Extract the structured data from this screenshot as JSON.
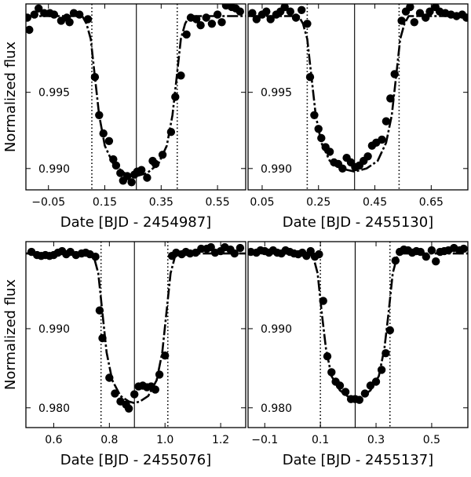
{
  "chart_data": [
    {
      "type": "scatter",
      "ylabel": "Normalized flux",
      "xlabel": "Date [BJD - 2454987]",
      "xlim": [
        -0.13,
        0.65
      ],
      "ylim": [
        0.9886,
        1.0008
      ],
      "xticks": [
        -0.05,
        0.15,
        0.35,
        0.55
      ],
      "xtick_labels": [
        "−0.05",
        "0.15",
        "0.35",
        "0.55"
      ],
      "yticks": [
        0.995,
        0.99
      ],
      "ytick_labels": [
        "0.995",
        "0.990"
      ],
      "vlines": [
        {
          "x": 0.104,
          "style": "dotted"
        },
        {
          "x": 0.262,
          "style": "solid"
        },
        {
          "x": 0.407,
          "style": "dotted"
        }
      ],
      "points": {
        "x": [
          -0.125,
          -0.118,
          -0.1,
          -0.085,
          -0.065,
          -0.045,
          -0.03,
          -0.005,
          0.015,
          0.025,
          0.04,
          0.06,
          0.09,
          0.115,
          0.13,
          0.145,
          0.165,
          0.18,
          0.19,
          0.205,
          0.215,
          0.23,
          0.245,
          0.255,
          0.265,
          0.28,
          0.3,
          0.32,
          0.33,
          0.355,
          0.385,
          0.4,
          0.42,
          0.44,
          0.455,
          0.475,
          0.49,
          0.51,
          0.53,
          0.55,
          0.565,
          0.58,
          0.6,
          0.615,
          0.63
        ],
        "y": [
          0.9999,
          0.9991,
          1.0001,
          1.0005,
          1.0002,
          1.0002,
          1.0001,
          0.9997,
          0.9999,
          0.9996,
          1.0002,
          1.0001,
          0.9998,
          0.996,
          0.9935,
          0.9923,
          0.9918,
          0.9906,
          0.9902,
          0.9897,
          0.9892,
          0.9895,
          0.9891,
          0.9896,
          0.9898,
          0.9899,
          0.9894,
          0.9905,
          0.9903,
          0.9909,
          0.9924,
          0.9947,
          0.9961,
          0.9988,
          0.9999,
          0.9998,
          0.9994,
          0.9999,
          0.9995,
          1.0001,
          0.9996,
          1.0007,
          1.0006,
          1.0005,
          1.0003
        ]
      },
      "model": {
        "x": [
          -0.13,
          0.07,
          0.085,
          0.1,
          0.115,
          0.13,
          0.15,
          0.18,
          0.22,
          0.262,
          0.3,
          0.34,
          0.37,
          0.39,
          0.405,
          0.42,
          0.435,
          0.45,
          0.65
        ],
        "y": [
          1.0,
          1.0,
          0.9995,
          0.9985,
          0.996,
          0.9935,
          0.9915,
          0.9903,
          0.9897,
          0.9895,
          0.9897,
          0.9903,
          0.9915,
          0.9935,
          0.996,
          0.9985,
          0.9995,
          1.0,
          1.0
        ]
      }
    },
    {
      "type": "scatter",
      "ylabel": "",
      "xlabel": "Date [BJD - 2455130]",
      "xlim": [
        0.0,
        0.78
      ],
      "ylim": [
        0.9886,
        1.0008
      ],
      "xticks": [
        0.05,
        0.25,
        0.45,
        0.65
      ],
      "xtick_labels": [
        "0.05",
        "0.25",
        "0.45",
        "0.65"
      ],
      "yticks": [
        0.995,
        0.99
      ],
      "ytick_labels": [
        "0.995",
        "0.990"
      ],
      "vlines": [
        {
          "x": 0.21,
          "style": "dotted"
        },
        {
          "x": 0.378,
          "style": "solid"
        },
        {
          "x": 0.536,
          "style": "dotted"
        }
      ],
      "points": {
        "x": [
          0.015,
          0.03,
          0.05,
          0.065,
          0.08,
          0.1,
          0.115,
          0.13,
          0.15,
          0.17,
          0.19,
          0.21,
          0.22,
          0.235,
          0.25,
          0.26,
          0.275,
          0.29,
          0.305,
          0.32,
          0.335,
          0.35,
          0.365,
          0.38,
          0.395,
          0.41,
          0.425,
          0.44,
          0.455,
          0.475,
          0.49,
          0.505,
          0.52,
          0.545,
          0.56,
          0.575,
          0.59,
          0.61,
          0.63,
          0.645,
          0.665,
          0.68,
          0.7,
          0.72,
          0.74,
          0.76,
          0.775
        ],
        "y": [
          1.0002,
          0.9998,
          1.0001,
          1.0003,
          0.9998,
          1.0001,
          1.0003,
          1.0006,
          1.0003,
          0.9999,
          1.0004,
          0.9995,
          0.996,
          0.9935,
          0.9926,
          0.992,
          0.9914,
          0.9911,
          0.9904,
          0.9903,
          0.99,
          0.9907,
          0.9904,
          0.9901,
          0.9902,
          0.9905,
          0.9908,
          0.9915,
          0.9917,
          0.9919,
          0.9931,
          0.9946,
          0.9962,
          0.9997,
          1.0003,
          1.0006,
          0.9996,
          1.0002,
          0.9999,
          1.0003,
          1.0006,
          1.0003,
          1.0002,
          1.0001,
          1.0,
          1.0001,
          0.9999
        ]
      },
      "model": {
        "x": [
          0.0,
          0.18,
          0.195,
          0.21,
          0.225,
          0.24,
          0.26,
          0.29,
          0.33,
          0.378,
          0.42,
          0.46,
          0.49,
          0.51,
          0.525,
          0.54,
          0.555,
          0.57,
          0.78
        ],
        "y": [
          1.0,
          1.0,
          0.9995,
          0.9985,
          0.996,
          0.9935,
          0.9917,
          0.9905,
          0.99,
          0.9898,
          0.99,
          0.9905,
          0.9917,
          0.9935,
          0.996,
          0.9985,
          0.9995,
          1.0,
          1.0
        ]
      }
    },
    {
      "type": "scatter",
      "ylabel": "Normalized flux",
      "xlabel": "Date [BJD - 2455076]",
      "xlim": [
        0.5,
        1.29
      ],
      "ylim": [
        0.9775,
        1.001
      ],
      "xticks": [
        0.6,
        0.8,
        1.0,
        1.2
      ],
      "xtick_labels": [
        "0.6",
        "0.8",
        "1.0",
        "1.2"
      ],
      "yticks": [
        0.99,
        0.98
      ],
      "ytick_labels": [
        "0.990",
        "0.980"
      ],
      "vlines": [
        {
          "x": 0.77,
          "style": "dotted"
        },
        {
          "x": 0.89,
          "style": "solid"
        },
        {
          "x": 1.01,
          "style": "dotted"
        }
      ],
      "points": {
        "x": [
          0.52,
          0.54,
          0.555,
          0.57,
          0.585,
          0.6,
          0.615,
          0.63,
          0.645,
          0.66,
          0.68,
          0.7,
          0.715,
          0.73,
          0.75,
          0.765,
          0.775,
          0.8,
          0.82,
          0.84,
          0.86,
          0.87,
          0.89,
          0.905,
          0.92,
          0.935,
          0.95,
          0.965,
          0.98,
          1.0,
          1.025,
          1.04,
          1.06,
          1.075,
          1.09,
          1.11,
          1.13,
          1.15,
          1.165,
          1.18,
          1.2,
          1.215,
          1.235,
          1.25,
          1.27
        ],
        "y": [
          0.9997,
          0.9993,
          0.9992,
          0.9993,
          0.9992,
          0.9993,
          0.9996,
          0.9998,
          0.9994,
          0.9997,
          0.9993,
          0.9995,
          0.9996,
          0.9994,
          0.9991,
          0.9923,
          0.9888,
          0.9838,
          0.9818,
          0.9808,
          0.9804,
          0.9799,
          0.9817,
          0.9827,
          0.9828,
          0.9826,
          0.9827,
          0.9823,
          0.9842,
          0.9866,
          0.9992,
          0.9996,
          0.9994,
          0.9997,
          0.9995,
          0.9996,
          1.0001,
          1.0001,
          1.0003,
          0.9996,
          0.9998,
          1.0003,
          1.0,
          0.9995,
          1.0002
        ]
      },
      "model": {
        "x": [
          0.5,
          0.73,
          0.745,
          0.76,
          0.775,
          0.79,
          0.81,
          0.84,
          0.87,
          0.89,
          0.91,
          0.94,
          0.97,
          0.99,
          1.005,
          1.02,
          1.035,
          1.05,
          1.29
        ],
        "y": [
          0.9995,
          0.9995,
          0.999,
          0.997,
          0.992,
          0.987,
          0.9835,
          0.9815,
          0.9808,
          0.9806,
          0.9808,
          0.9815,
          0.9835,
          0.987,
          0.992,
          0.997,
          0.999,
          0.9995,
          0.9995
        ]
      }
    },
    {
      "type": "scatter",
      "ylabel": "",
      "xlabel": "Date [BJD - 2455137]",
      "xlim": [
        -0.16,
        0.63
      ],
      "ylim": [
        0.9775,
        1.001
      ],
      "xticks": [
        -0.1,
        0.1,
        0.3,
        0.5
      ],
      "xtick_labels": [
        "−0.1",
        "0.1",
        "0.3",
        "0.5"
      ],
      "yticks": [
        0.99,
        0.98
      ],
      "ytick_labels": [
        "0.990",
        "0.980"
      ],
      "vlines": [
        {
          "x": 0.1,
          "style": "dotted"
        },
        {
          "x": 0.225,
          "style": "solid"
        },
        {
          "x": 0.35,
          "style": "dotted"
        }
      ],
      "points": {
        "x": [
          -0.15,
          -0.13,
          -0.115,
          -0.1,
          -0.085,
          -0.07,
          -0.055,
          -0.04,
          -0.025,
          -0.01,
          0.005,
          0.02,
          0.035,
          0.05,
          0.065,
          0.08,
          0.095,
          0.11,
          0.125,
          0.14,
          0.155,
          0.17,
          0.19,
          0.21,
          0.225,
          0.24,
          0.26,
          0.28,
          0.3,
          0.32,
          0.335,
          0.35,
          0.37,
          0.385,
          0.4,
          0.415,
          0.43,
          0.445,
          0.46,
          0.48,
          0.5,
          0.515,
          0.53,
          0.545,
          0.56,
          0.58,
          0.6,
          0.615
        ],
        "y": [
          0.9997,
          0.9996,
          0.9999,
          0.9998,
          0.9996,
          0.9999,
          0.9996,
          0.9995,
          0.9999,
          0.9997,
          0.9995,
          0.9994,
          0.9996,
          0.9992,
          0.9998,
          0.9991,
          0.9994,
          0.9935,
          0.9865,
          0.9845,
          0.9833,
          0.9828,
          0.982,
          0.9811,
          0.9811,
          0.981,
          0.9818,
          0.9828,
          0.9833,
          0.9848,
          0.9869,
          0.9898,
          0.9986,
          0.9997,
          1.0,
          0.9999,
          0.9996,
          0.9998,
          0.9997,
          0.9991,
          0.9999,
          0.9985,
          0.9997,
          0.9998,
          0.9999,
          1.0002,
          0.9999,
          1.0001
        ]
      },
      "model": {
        "x": [
          -0.16,
          0.06,
          0.075,
          0.09,
          0.105,
          0.12,
          0.14,
          0.17,
          0.2,
          0.225,
          0.25,
          0.28,
          0.31,
          0.33,
          0.345,
          0.36,
          0.375,
          0.39,
          0.63
        ],
        "y": [
          0.9995,
          0.9995,
          0.999,
          0.997,
          0.992,
          0.9875,
          0.984,
          0.9822,
          0.9814,
          0.9812,
          0.9814,
          0.9822,
          0.984,
          0.9875,
          0.992,
          0.997,
          0.999,
          0.9995,
          0.9995
        ]
      }
    }
  ]
}
